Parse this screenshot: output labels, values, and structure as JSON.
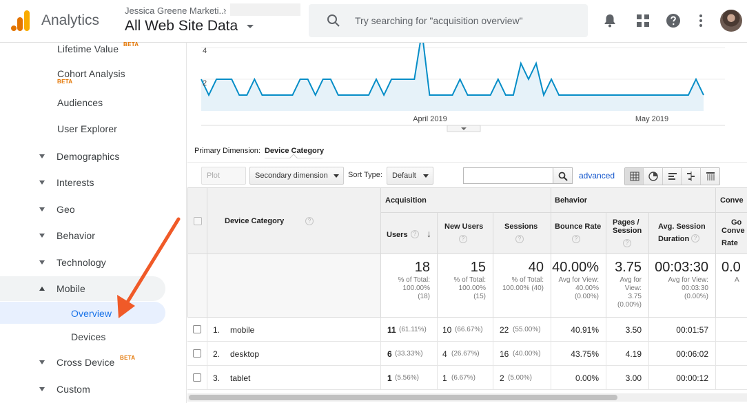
{
  "header": {
    "app_name": "Analytics",
    "account": "Jessica Greene Marketi...",
    "account_chevron": "›",
    "view": "All Web Site Data",
    "search_placeholder": "Try searching for \"acquisition overview\"",
    "icons": [
      "analytics-logo",
      "search-icon",
      "bell-icon",
      "apps-grid-icon",
      "help-icon",
      "more-vert-icon",
      "avatar"
    ]
  },
  "sidebar": {
    "items": [
      {
        "label": "Lifetime Value",
        "beta": "BETA",
        "indent": "child"
      },
      {
        "label": "Cohort Analysis",
        "beta": "BETA",
        "indent": "child"
      },
      {
        "label": "Audiences",
        "indent": "child"
      },
      {
        "label": "User Explorer",
        "indent": "child"
      },
      {
        "label": "Demographics",
        "indent": "section"
      },
      {
        "label": "Interests",
        "indent": "section"
      },
      {
        "label": "Geo",
        "indent": "section"
      },
      {
        "label": "Behavior",
        "indent": "section"
      },
      {
        "label": "Technology",
        "indent": "section"
      },
      {
        "label": "Mobile",
        "indent": "section",
        "expanded": true
      },
      {
        "label": "Overview",
        "indent": "subchild",
        "active": true
      },
      {
        "label": "Devices",
        "indent": "subchild"
      },
      {
        "label": "Cross Device",
        "beta": "BETA",
        "indent": "section"
      },
      {
        "label": "Custom",
        "indent": "section"
      }
    ]
  },
  "chart_data": {
    "type": "area",
    "y_ticks": [
      "4",
      "2"
    ],
    "x_labels": [
      "April 2019",
      "May 2019"
    ],
    "series": [
      {
        "values": [
          2,
          1,
          2,
          2,
          2,
          1,
          1,
          2,
          1,
          1,
          1,
          1,
          1,
          2,
          2,
          1,
          2,
          2,
          1,
          1,
          1,
          1,
          1,
          2,
          1,
          2,
          2,
          2,
          2,
          5,
          1,
          1,
          1,
          1,
          2,
          1,
          1,
          1,
          1,
          2,
          1,
          1,
          3,
          2,
          3,
          1,
          2,
          1,
          1,
          1,
          1,
          1,
          1,
          1,
          1,
          1,
          1,
          1,
          1,
          1,
          1,
          1,
          1,
          1,
          1,
          2,
          1
        ]
      }
    ],
    "color": "#058dc7",
    "fill": "#e6f2f9"
  },
  "primary_dimension": {
    "label": "Primary Dimension:",
    "value": "Device Category"
  },
  "toolbar": {
    "plot_rows": "Plot Rows",
    "secondary_dimension": "Secondary dimension",
    "sort_label": "Sort Type:",
    "sort_value": "Default",
    "advanced": "advanced"
  },
  "table": {
    "dimension_header": "Device Category",
    "groups": {
      "acquisition": "Acquisition",
      "behavior": "Behavior",
      "conversions": "Conve"
    },
    "columns": {
      "users": "Users",
      "new_users": "New Users",
      "sessions": "Sessions",
      "bounce_rate": "Bounce Rate",
      "pages_l1": "Pages /",
      "pages_l2": "Session",
      "duration_l1": "Avg. Session",
      "duration_l2": "Duration",
      "goal_l1": "Go",
      "goal_l2": "Conve",
      "goal_l3": "Rate"
    },
    "totals": {
      "users": {
        "value": "18",
        "l1": "% of Total:",
        "l2": "100.00%",
        "l3": "(18)"
      },
      "new_users": {
        "value": "15",
        "l1": "% of Total:",
        "l2": "100.00%",
        "l3": "(15)"
      },
      "sessions": {
        "value": "40",
        "l1": "% of Total:",
        "l2": "100.00% (40)"
      },
      "bounce_rate": {
        "value": "40.00%",
        "l1": "Avg for View:",
        "l2": "40.00%",
        "l3": "(0.00%)"
      },
      "pages": {
        "value": "3.75",
        "l1": "Avg for",
        "l2": "View:",
        "l3": "3.75",
        "l4": "(0.00%)"
      },
      "duration": {
        "value": "00:03:30",
        "l1": "Avg for View:",
        "l2": "00:03:30",
        "l3": "(0.00%)"
      },
      "goal": {
        "value": "0.0",
        "l1": "A"
      }
    },
    "rows": [
      {
        "rank": "1.",
        "device": "mobile",
        "users": "11",
        "users_pct": "(61.11%)",
        "new_users": "10",
        "new_users_pct": "(66.67%)",
        "sessions": "22",
        "sessions_pct": "(55.00%)",
        "bounce": "40.91%",
        "pages": "3.50",
        "duration": "00:01:57"
      },
      {
        "rank": "2.",
        "device": "desktop",
        "users": "6",
        "users_pct": "(33.33%)",
        "new_users": "4",
        "new_users_pct": "(26.67%)",
        "sessions": "16",
        "sessions_pct": "(40.00%)",
        "bounce": "43.75%",
        "pages": "4.19",
        "duration": "00:06:02"
      },
      {
        "rank": "3.",
        "device": "tablet",
        "users": "1",
        "users_pct": "(5.56%)",
        "new_users": "1",
        "new_users_pct": "(6.67%)",
        "sessions": "2",
        "sessions_pct": "(5.00%)",
        "bounce": "0.00%",
        "pages": "3.00",
        "duration": "00:00:12"
      }
    ],
    "help_glyph": "?",
    "sort_glyph": "↓"
  },
  "annotation": {
    "arrow_color": "#f05a28"
  }
}
